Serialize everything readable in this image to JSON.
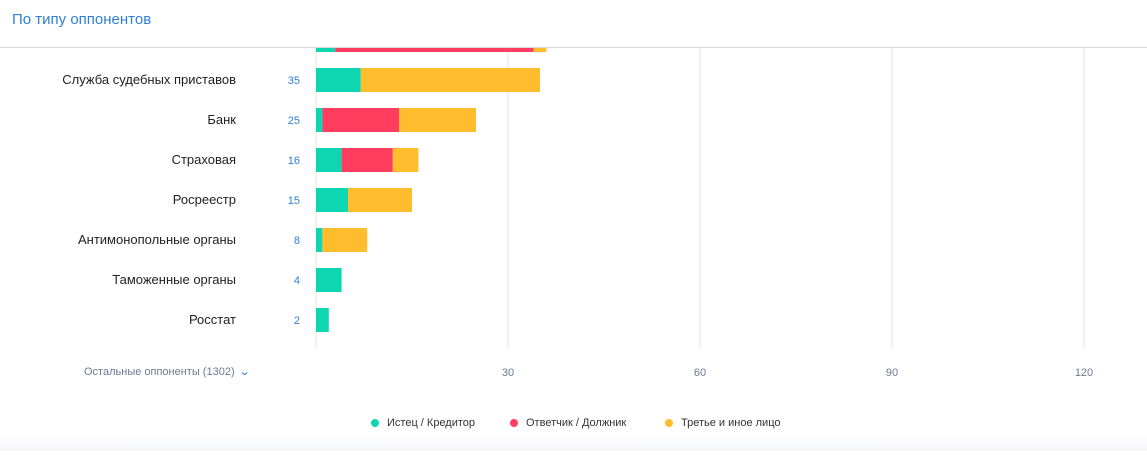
{
  "header": {
    "title": "По типу оппонентов"
  },
  "more_link": {
    "label": "Остальные оппоненты (1302)",
    "icon": "chevron-down-icon"
  },
  "colors": {
    "plaintiff": "#0dd6b0",
    "defendant": "#ff3d5f",
    "third": "#ffbd2e",
    "count_text": "#2f7fd6",
    "grid": "#e3e3e3"
  },
  "chart_data": {
    "type": "bar",
    "orientation": "horizontal",
    "stacked": true,
    "categories": [
      "Служба судебных приставов",
      "Банк",
      "Страховая",
      "Росреестр",
      "Антимонопольные органы",
      "Таможенные органы",
      "Росстат"
    ],
    "counts": [
      "35",
      "25",
      "16",
      "15",
      "8",
      "4",
      "2"
    ],
    "series": [
      {
        "name": "Истец / Кредитор",
        "color": "#0dd6b0",
        "values": [
          7,
          1,
          4,
          5,
          1,
          4,
          2
        ]
      },
      {
        "name": "Ответчик / Должник",
        "color": "#ff3d5f",
        "values": [
          0,
          12,
          8,
          0,
          0,
          0,
          0
        ]
      },
      {
        "name": "Третье и иное лицо",
        "color": "#ffbd2e",
        "values": [
          28,
          12,
          4,
          10,
          7,
          0,
          0
        ]
      }
    ],
    "partial_top_row": {
      "values": [
        3,
        31,
        2
      ]
    },
    "xlim": [
      0,
      120
    ],
    "xticks": [
      "30",
      "60",
      "90",
      "120"
    ],
    "xtick_values": [
      30,
      60,
      90,
      120
    ],
    "grid": true,
    "legend_position": "bottom-center"
  }
}
